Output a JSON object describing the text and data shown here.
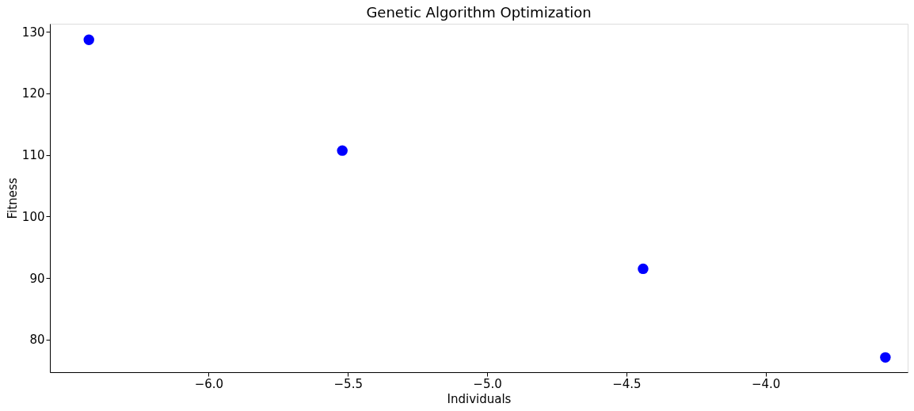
{
  "chart_data": {
    "type": "scatter",
    "title": "Genetic Algorithm Optimization",
    "xlabel": "Individuals",
    "ylabel": "Fitness",
    "x": [
      -6.43,
      -5.52,
      -4.44,
      -3.57
    ],
    "series": [
      {
        "color": "#0000ff",
        "values": [
          128.7,
          110.7,
          91.5,
          77.1
        ]
      }
    ],
    "xlim": [
      -6.57,
      -3.49
    ],
    "xticks": [
      {
        "value": -6.0,
        "label": "−6.0"
      },
      {
        "value": -5.5,
        "label": "−5.5"
      },
      {
        "value": -5.0,
        "label": "−5.0"
      },
      {
        "value": -4.5,
        "label": "−4.5"
      },
      {
        "value": -4.0,
        "label": "−4.0"
      }
    ],
    "ylim": [
      74.7,
      131.3
    ],
    "yticks": [
      80,
      90,
      100,
      110,
      120,
      130
    ],
    "grid": false,
    "marker": "circle"
  }
}
